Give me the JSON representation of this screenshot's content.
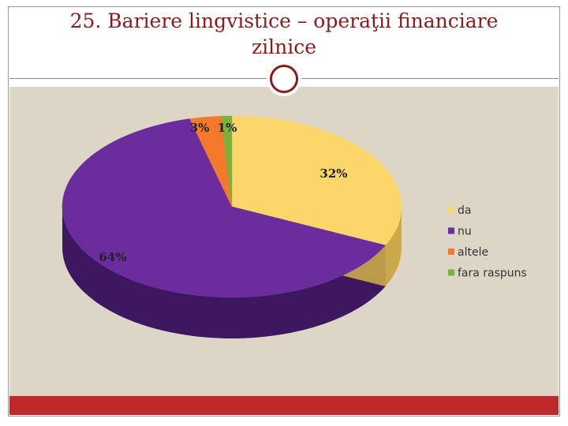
{
  "slide": {
    "title_line1": "25. Bariere lingvistice – operaţii financiare",
    "title_line2": "zilnice"
  },
  "colors": {
    "title": "#8b1a1a",
    "background": "#ddd6c6",
    "footer_bar": "#c0292b"
  },
  "icons": {
    "title_ornament": "ring-icon"
  },
  "chart_data": {
    "type": "pie",
    "style": "3d",
    "title": "",
    "legend_position": "right",
    "slices": [
      {
        "name": "da",
        "value": 32,
        "label": "32%",
        "color": "#fad66b",
        "side_color": "#c9a94a"
      },
      {
        "name": "nu",
        "value": 64,
        "label": "64%",
        "color": "#6b2c9e",
        "side_color": "#3d1760"
      },
      {
        "name": "altele",
        "value": 3,
        "label": "3%",
        "color": "#f5792b",
        "side_color": "#b8551a"
      },
      {
        "name": "fara raspuns",
        "value": 1,
        "label": "1%",
        "color": "#79b33b",
        "side_color": "#4e7a22"
      }
    ]
  }
}
